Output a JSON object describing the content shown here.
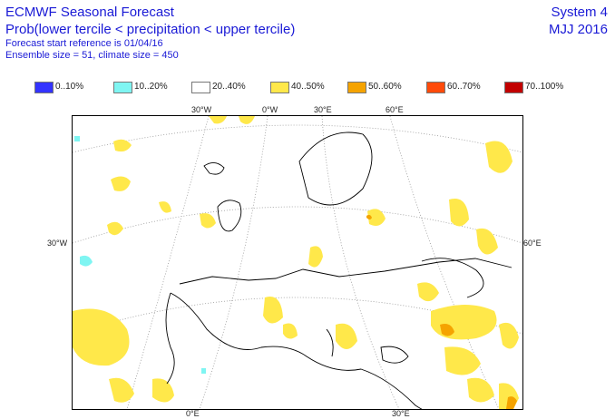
{
  "header": {
    "title": "ECMWF Seasonal Forecast",
    "subtitle": "Prob(lower tercile < precipitation < upper tercile)",
    "start_reference": "Forecast start reference is 01/04/16",
    "ensemble": "Ensemble size = 51, climate size = 450"
  },
  "system": {
    "name": "System 4",
    "period": "MJJ 2016"
  },
  "legend": [
    {
      "label": "0..10%",
      "color": "#3333ff"
    },
    {
      "label": "10..20%",
      "color": "#7ff5f2"
    },
    {
      "label": "20..40%",
      "color": "#ffffff"
    },
    {
      "label": "40..50%",
      "color": "#ffe84a"
    },
    {
      "label": "50..60%",
      "color": "#f5a300"
    },
    {
      "label": "60..70%",
      "color": "#ff4a0a"
    },
    {
      "label": "70..100%",
      "color": "#c20000"
    }
  ],
  "axis_labels": {
    "top_30w": "30°W",
    "top_0": "0°W",
    "top_30e": "30°E",
    "top_60e": "60°E",
    "left_30w": "30°W",
    "right_60e": "60°E",
    "bottom_0": "0°E",
    "bottom_30e": "30°E"
  },
  "colors": {
    "text": "#1a1ad6",
    "land_outline": "#000000",
    "graticule": "#999999"
  }
}
